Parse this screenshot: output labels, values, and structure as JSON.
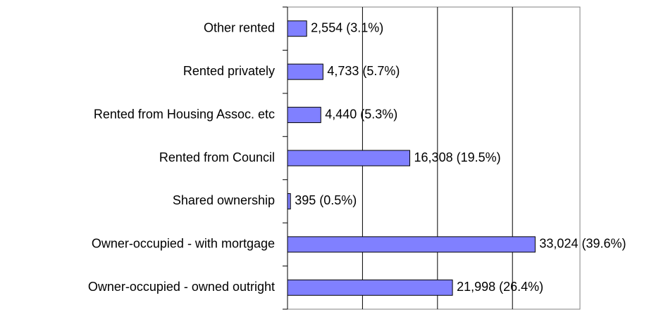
{
  "chart_data": {
    "type": "bar",
    "orientation": "horizontal",
    "categories": [
      "Other rented",
      "Rented privately",
      "Rented from Housing Assoc. etc",
      "Rented from Council",
      "Shared ownership",
      "Owner-occupied - with mortgage",
      "Owner-occupied - owned outright"
    ],
    "values": [
      2554,
      4733,
      4440,
      16308,
      395,
      33024,
      21998
    ],
    "value_labels": [
      "2,554 (3.1%)",
      "4,733 (5.7%)",
      "4,440 (5.3%)",
      "16,308 (19.5%)",
      "395 (0.5%)",
      "33,024 (39.6%)",
      "21,998 (26.4%)"
    ],
    "color": "#8080ff",
    "xlim": [
      0,
      39000
    ],
    "xticks": [
      0,
      10000,
      20000,
      30000
    ],
    "grid": true
  }
}
